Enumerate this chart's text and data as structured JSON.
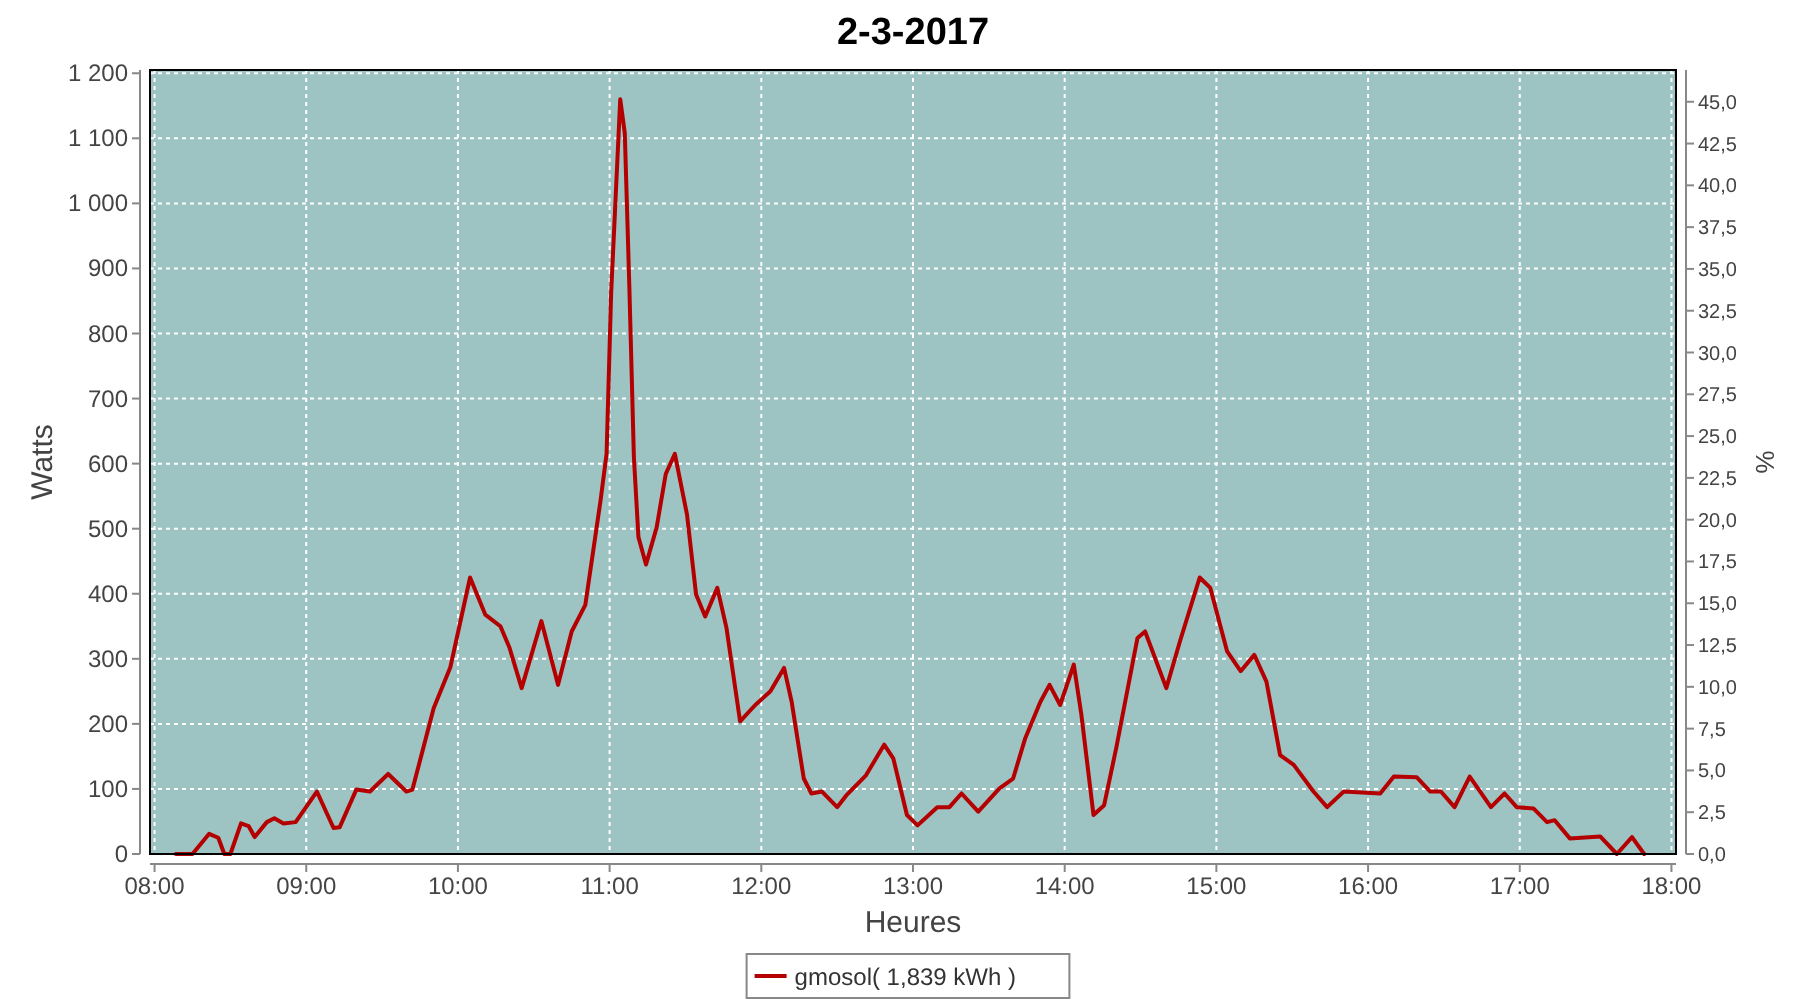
{
  "chart_data": {
    "type": "line",
    "title": "2-3-2017",
    "xlabel": "Heures",
    "ylabel": "Watts",
    "y2label": "%",
    "xlim": [
      7.97,
      18.03
    ],
    "xticks": [
      {
        "value": 8,
        "label": "08:00"
      },
      {
        "value": 9,
        "label": "09:00"
      },
      {
        "value": 10,
        "label": "10:00"
      },
      {
        "value": 11,
        "label": "11:00"
      },
      {
        "value": 12,
        "label": "12:00"
      },
      {
        "value": 13,
        "label": "13:00"
      },
      {
        "value": 14,
        "label": "14:00"
      },
      {
        "value": 15,
        "label": "15:00"
      },
      {
        "value": 16,
        "label": "16:00"
      },
      {
        "value": 17,
        "label": "17:00"
      },
      {
        "value": 18,
        "label": "18:00"
      }
    ],
    "ylim": [
      0,
      1205
    ],
    "yticks": [
      0,
      100,
      200,
      300,
      400,
      500,
      600,
      700,
      800,
      900,
      {
        "value": 1000,
        "label": "1 000"
      },
      {
        "value": 1100,
        "label": "1 100"
      },
      {
        "value": 1200,
        "label": "1 200"
      }
    ],
    "y2lim": [
      0,
      46.9
    ],
    "y2ticks": [
      {
        "value": 0,
        "label": "0,0"
      },
      {
        "value": 2.5,
        "label": "2,5"
      },
      {
        "value": 5,
        "label": "5,0"
      },
      {
        "value": 7.5,
        "label": "7,5"
      },
      {
        "value": 10,
        "label": "10,0"
      },
      {
        "value": 12.5,
        "label": "12,5"
      },
      {
        "value": 15,
        "label": "15,0"
      },
      {
        "value": 17.5,
        "label": "17,5"
      },
      {
        "value": 20,
        "label": "20,0"
      },
      {
        "value": 22.5,
        "label": "22,5"
      },
      {
        "value": 25,
        "label": "25,0"
      },
      {
        "value": 27.5,
        "label": "27,5"
      },
      {
        "value": 30,
        "label": "30,0"
      },
      {
        "value": 32.5,
        "label": "32,5"
      },
      {
        "value": 35,
        "label": "35,0"
      },
      {
        "value": 37.5,
        "label": "37,5"
      },
      {
        "value": 40,
        "label": "40,0"
      },
      {
        "value": 42.5,
        "label": "42,5"
      },
      {
        "value": 45,
        "label": "45,0"
      }
    ],
    "grid": true,
    "legend": "bottom",
    "line_style": "solid",
    "series": [
      {
        "name": "gmosol( 1,839 kWh )",
        "color": "#b40000",
        "x": [
          8.14,
          8.25,
          8.36,
          8.42,
          8.46,
          8.5,
          8.57,
          8.62,
          8.66,
          8.74,
          8.79,
          8.85,
          8.93,
          9.07,
          9.18,
          9.22,
          9.33,
          9.42,
          9.54,
          9.66,
          9.7,
          9.84,
          9.95,
          10.08,
          10.18,
          10.28,
          10.34,
          10.42,
          10.55,
          10.66,
          10.75,
          10.84,
          10.94,
          10.98,
          11.01,
          11.07,
          11.1,
          11.13,
          11.16,
          11.19,
          11.24,
          11.31,
          11.37,
          11.43,
          11.51,
          11.57,
          11.63,
          11.71,
          11.77,
          11.86,
          11.96,
          12.06,
          12.15,
          12.2,
          12.28,
          12.33,
          12.4,
          12.5,
          12.56,
          12.69,
          12.81,
          12.87,
          12.96,
          13.03,
          13.16,
          13.24,
          13.32,
          13.43,
          13.57,
          13.66,
          13.74,
          13.84,
          13.9,
          13.97,
          14.06,
          14.11,
          14.19,
          14.26,
          14.34,
          14.48,
          14.53,
          14.67,
          14.76,
          14.89,
          14.96,
          15.07,
          15.16,
          15.25,
          15.33,
          15.42,
          15.51,
          15.64,
          15.73,
          15.84,
          16.08,
          16.17,
          16.32,
          16.41,
          16.48,
          16.57,
          16.67,
          16.81,
          16.9,
          16.98,
          17.09,
          17.18,
          17.23,
          17.33,
          17.53,
          17.64,
          17.74,
          17.82
        ],
        "values": [
          0,
          0,
          31,
          25,
          0,
          0,
          47,
          43,
          26,
          49,
          55,
          47,
          49,
          96,
          40,
          41,
          99,
          96,
          123,
          96,
          99,
          224,
          287,
          425,
          368,
          350,
          317,
          255,
          358,
          260,
          342,
          383,
          543,
          615,
          862,
          1160,
          1108,
          872,
          610,
          487,
          445,
          502,
          584,
          615,
          522,
          399,
          365,
          409,
          348,
          204,
          229,
          250,
          286,
          234,
          116,
          93,
          96,
          72,
          90,
          121,
          168,
          147,
          60,
          44,
          72,
          72,
          93,
          65,
          101,
          116,
          178,
          234,
          260,
          229,
          291,
          214,
          60,
          75,
          163,
          332,
          342,
          255,
          327,
          425,
          409,
          312,
          281,
          306,
          265,
          152,
          137,
          96,
          72,
          96,
          93,
          119,
          118,
          96,
          96,
          72,
          119,
          72,
          93,
          72,
          70,
          49,
          52,
          24,
          27,
          0,
          26,
          0
        ]
      }
    ]
  }
}
